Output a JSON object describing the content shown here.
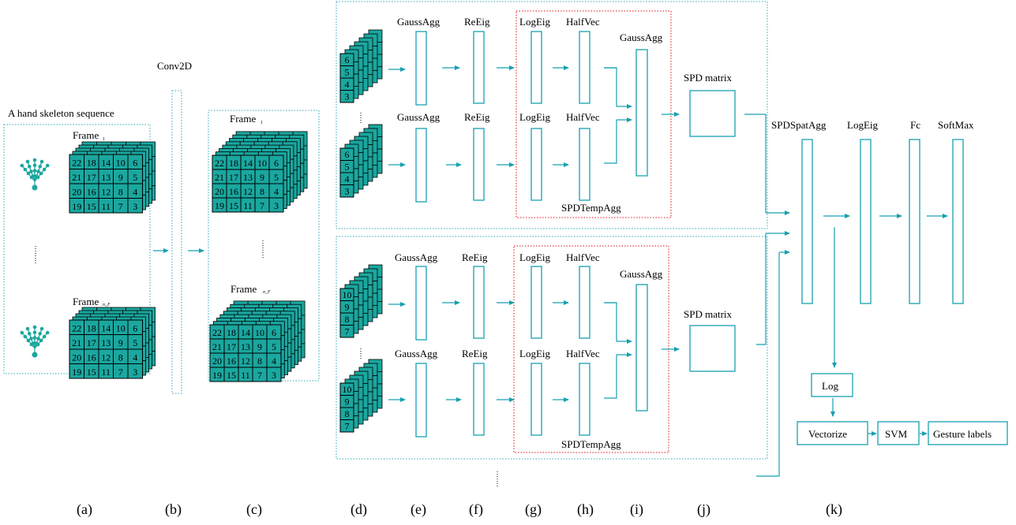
{
  "labels": {
    "seq_title": "A hand skeleton sequence",
    "frame_1": "Frame",
    "frame_1_sub": "1",
    "frame_n": "Frame",
    "frame_n_sub": "n_F",
    "conv2d": "Conv2D",
    "gaussagg": "GaussAgg",
    "reeig": "ReEig",
    "logeig": "LogEig",
    "halfvec": "HalfVec",
    "spdtempagg": "SPDTempAgg",
    "spd_matrix": "SPD matrix",
    "spdspatagg": "SPDSpatAgg",
    "logeig_k": "LogEig",
    "fc": "Fc",
    "softmax": "SoftMax",
    "log": "Log",
    "vectorize": "Vectorize",
    "svm": "SVM",
    "gesture_labels": "Gesture labels"
  },
  "grid_rows": [
    [
      "22",
      "18",
      "14",
      "10",
      "6"
    ],
    [
      "21",
      "17",
      "13",
      "9",
      "5"
    ],
    [
      "20",
      "16",
      "12",
      "8",
      "4"
    ],
    [
      "19",
      "15",
      "11",
      "7",
      "3"
    ]
  ],
  "stack_top": [
    "6",
    "5",
    "4",
    "3"
  ],
  "stack_bottom": [
    "10",
    "9",
    "8",
    "7"
  ],
  "captions": [
    "(a)",
    "(b)",
    "(c)",
    "(d)",
    "(e)",
    "(f)",
    "(g)",
    "(h)",
    "(i)",
    "(j)",
    "(k)"
  ],
  "colors": {
    "teal": "#1aa79f",
    "line": "#16a0b0",
    "red": "#e01010"
  }
}
